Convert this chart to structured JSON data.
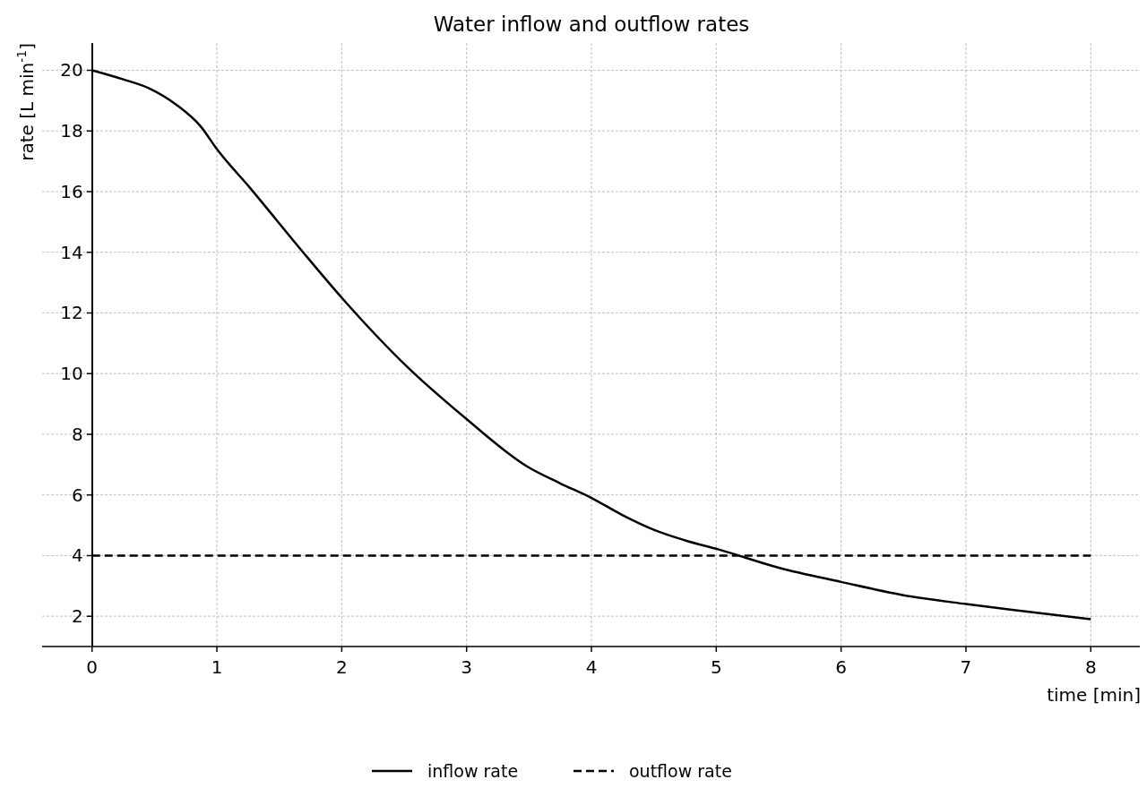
{
  "chart_data": {
    "type": "line",
    "title": "Water inflow and outflow rates",
    "xlabel": "time [min]",
    "ylabel": "rate [L min$^{-1}$]",
    "xlim": [
      -0.4,
      8.4
    ],
    "ylim": [
      1,
      20.9
    ],
    "xticks": [
      0,
      1,
      2,
      3,
      4,
      5,
      6,
      7,
      8
    ],
    "yticks": [
      2,
      4,
      6,
      8,
      10,
      12,
      14,
      16,
      18,
      20
    ],
    "grid": true,
    "legend": "bottom",
    "marker": "none",
    "series": [
      {
        "name": "inflow rate",
        "color": "#000000",
        "line_style": "solid",
        "x": [
          0,
          0.25,
          0.46,
          0.68,
          0.87,
          1,
          1.27,
          1.68,
          2,
          2.53,
          3,
          3.48,
          3.75,
          4,
          4.25,
          4.5,
          4.75,
          5.02,
          5.5,
          6,
          6.49,
          7,
          7.49,
          8
        ],
        "values": [
          20,
          19.7,
          19.4,
          18.85,
          18.15,
          17.4,
          16.1,
          14.05,
          12.5,
          10.2,
          8.5,
          6.95,
          6.38,
          5.9,
          5.33,
          4.85,
          4.5,
          4.2,
          3.6,
          3.13,
          2.7,
          2.4,
          2.15,
          1.9
        ]
      },
      {
        "name": "outflow rate",
        "color": "#000000",
        "line_style": "dashed",
        "x": [
          0,
          8
        ],
        "values": [
          4,
          4
        ]
      }
    ]
  }
}
